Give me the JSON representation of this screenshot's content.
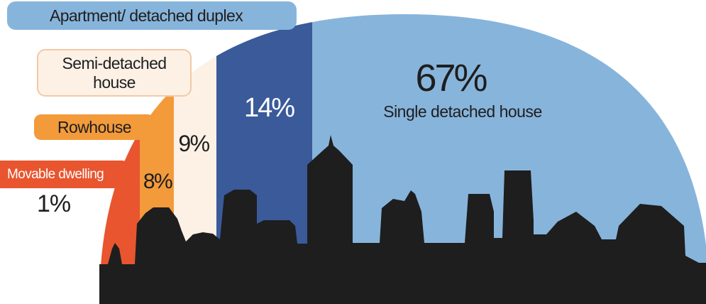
{
  "chart_data": {
    "type": "pie",
    "shape": "half-dome",
    "slices": [
      {
        "label": "Movable dwelling",
        "value": 1,
        "value_label": "1%",
        "color": "#e8552f"
      },
      {
        "label": "Rowhouse",
        "value": 8,
        "value_label": "8%",
        "color": "#f39a3b"
      },
      {
        "label": "Semi-detached house",
        "value": 9,
        "value_label": "9%",
        "color": "#fdf1e6"
      },
      {
        "label": "Apartment/ detached duplex",
        "value": 14,
        "value_label": "14%",
        "color": "#3a5a9a"
      },
      {
        "label": "Single detached house",
        "value": 67,
        "value_label": "67%",
        "color": "#87b4db"
      }
    ],
    "legend": {
      "apartment": "Apartment/ detached duplex",
      "semi_line1": "Semi-detached",
      "semi_line2": "house",
      "rowhouse": "Rowhouse",
      "movable": "Movable dwelling"
    },
    "annotations": {
      "single_pct": "67%",
      "single_label": "Single detached house",
      "apartment_pct": "14%",
      "semi_pct": "9%",
      "row_pct": "8%",
      "movable_pct": "1%"
    },
    "colors": {
      "skyline": "#1e1e1e",
      "pill_apartment": "#87b4db",
      "pill_semi": "#fdf1e6",
      "pill_row": "#f39a3b",
      "pill_movable": "#e8552f"
    }
  }
}
